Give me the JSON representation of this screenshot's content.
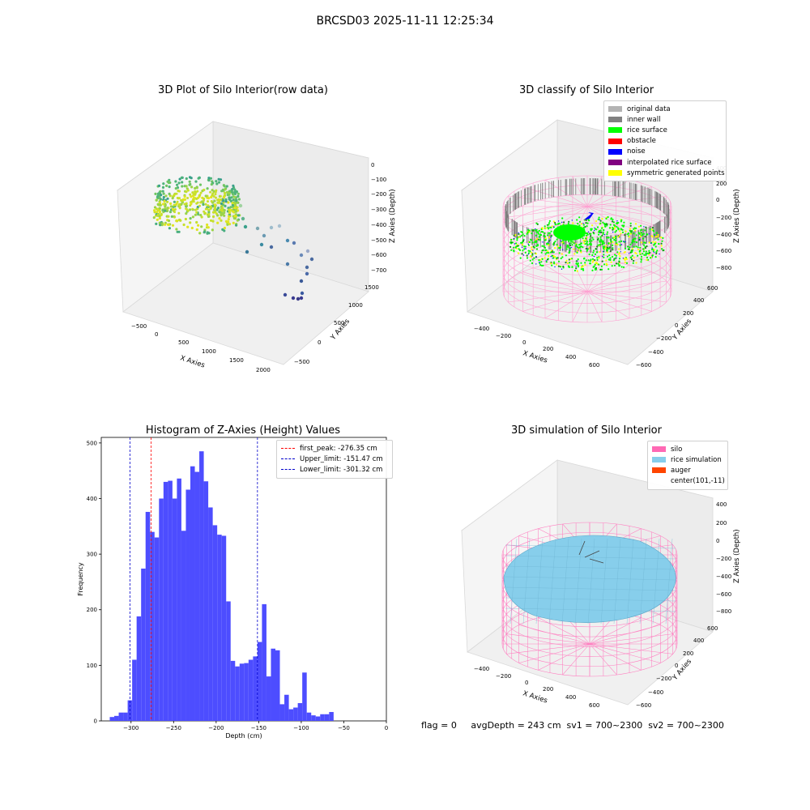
{
  "figure_title": "BRCSD03 2025-11-11 12:25:34",
  "footer_text": "flag = 0     avgDepth = 243 cm  sv1 = 700~2300  sv2 = 700~2300",
  "colors": {
    "original_data": "#b3b3b3",
    "inner_wall": "#808080",
    "rice_surface": "#00ff00",
    "obstacle": "#ff0000",
    "noise": "#0000ff",
    "interpolated": "#800080",
    "symmetric": "#ffff00",
    "hist_bar": "#4d4dff",
    "first_peak_line": "#ff0000",
    "limit_line": "#0000cc",
    "silo": "#ff69b4",
    "rice_sim": "#87ceeb",
    "auger": "#ff4500"
  },
  "panels": {
    "raw": {
      "title": "3D Plot of Silo Interior(row data)",
      "x_label": "X Axies",
      "y_label": "Y Axies",
      "z_label": "Z Axies (Depth)",
      "x_ticks": [
        "−500",
        "0",
        "500",
        "1000",
        "1500",
        "2000"
      ],
      "y_ticks": [
        "−500",
        "0",
        "500",
        "1000",
        "1500"
      ],
      "z_ticks": [
        "0",
        "−100",
        "−200",
        "−300",
        "−400",
        "−500",
        "−600",
        "−700"
      ]
    },
    "classify": {
      "title": "3D classify of Silo Interior",
      "x_label": "X Axies",
      "y_label": "Y Axies",
      "z_label": "Z Axies (Depth)",
      "x_ticks": [
        "−400",
        "−200",
        "0",
        "200",
        "400",
        "600"
      ],
      "y_ticks": [
        "−600",
        "−400",
        "−200",
        "0",
        "200",
        "400",
        "600"
      ],
      "z_ticks": [
        "400",
        "200",
        "0",
        "−200",
        "−400",
        "−600",
        "−800"
      ],
      "legend": [
        {
          "label": "original data",
          "color": "#b3b3b3"
        },
        {
          "label": "inner wall",
          "color": "#808080"
        },
        {
          "label": "rice surface",
          "color": "#00ff00"
        },
        {
          "label": "obstacle",
          "color": "#ff0000"
        },
        {
          "label": "noise",
          "color": "#0000ff"
        },
        {
          "label": "interpolated rice surface",
          "color": "#800080"
        },
        {
          "label": "symmetric generated points",
          "color": "#ffff00"
        }
      ]
    },
    "simulation": {
      "title": "3D simulation of Silo Interior",
      "x_label": "X Axies",
      "y_label": "Y Axies",
      "z_label": "Z Axies (Depth)",
      "x_ticks": [
        "−400",
        "−200",
        "0",
        "200",
        "400",
        "600"
      ],
      "y_ticks": [
        "−600",
        "−400",
        "−200",
        "0",
        "200",
        "400",
        "600"
      ],
      "z_ticks": [
        "400",
        "200",
        "0",
        "−200",
        "−400",
        "−600",
        "−800"
      ],
      "legend": [
        {
          "label": "silo",
          "color": "#ff69b4"
        },
        {
          "label": "rice simulation",
          "color": "#87ceeb"
        },
        {
          "label": "auger",
          "color": "#ff4500"
        },
        {
          "label": "center(101,-11)",
          "color": ""
        }
      ]
    }
  },
  "chart_data": [
    {
      "type": "bar",
      "title": "Histogram of Z-Axies (Height) Values",
      "xlabel": "Depth (cm)",
      "ylabel": "Frequency",
      "xlim": [
        -335,
        0
      ],
      "ylim": [
        0,
        510
      ],
      "x_ticks": [
        -300,
        -250,
        -200,
        -150,
        -100,
        -50,
        0
      ],
      "x_tick_labels": [
        "−300",
        "−250",
        "−200",
        "−150",
        "−100",
        "−50",
        "0"
      ],
      "y_ticks": [
        0,
        100,
        200,
        300,
        400,
        500
      ],
      "bin_start": -325.0,
      "bin_width": 5.26,
      "values": [
        7,
        9,
        15,
        15,
        37,
        110,
        188,
        274,
        376,
        340,
        330,
        400,
        430,
        432,
        400,
        436,
        342,
        416,
        458,
        448,
        485,
        431,
        384,
        352,
        335,
        333,
        215,
        108,
        98,
        103,
        104,
        110,
        116,
        142,
        210,
        80,
        130,
        127,
        30,
        47,
        21,
        24,
        32,
        87,
        15,
        10,
        8,
        12,
        12,
        16
      ],
      "vlines": [
        {
          "x": -276.35,
          "label": "first_peak: -276.35 cm",
          "color": "#ff0000"
        },
        {
          "x": -151.47,
          "label": "Upper_limit: -151.47 cm",
          "color": "#0000cc"
        },
        {
          "x": -301.32,
          "label": "Lower_limit: -301.32 cm",
          "color": "#0000cc"
        }
      ],
      "legend_position": "upper-right"
    }
  ]
}
